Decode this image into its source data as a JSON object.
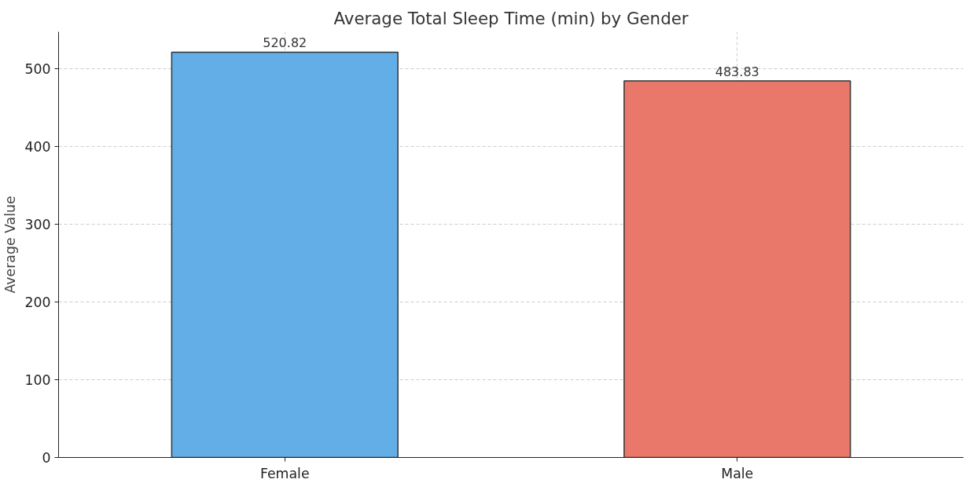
{
  "chart_data": {
    "type": "bar",
    "title": "Average Total Sleep Time (min) by Gender",
    "ylabel": "Average Value",
    "categories": [
      "Female",
      "Male"
    ],
    "values": [
      520.82,
      483.83
    ],
    "colors": [
      "#63aee6",
      "#ea786a"
    ],
    "ylim": [
      0,
      547
    ],
    "yticks": [
      0,
      100,
      200,
      300,
      400,
      500
    ],
    "grid": true,
    "data_labels": true
  }
}
